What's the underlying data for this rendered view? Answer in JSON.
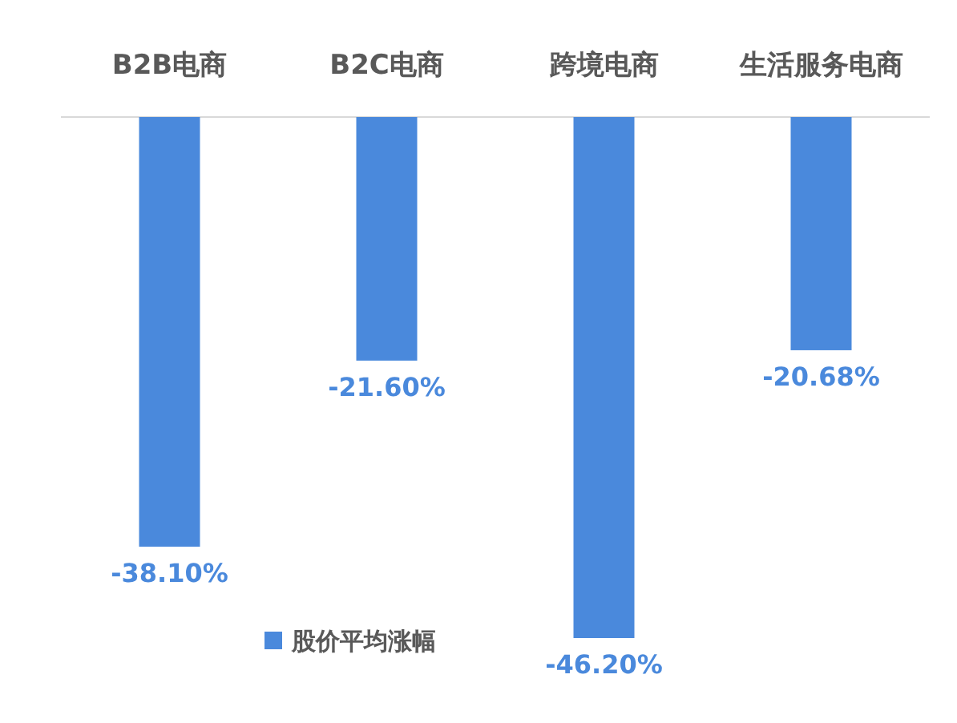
{
  "chart_data": {
    "type": "bar",
    "categories": [
      "B2B电商",
      "B2C电商",
      "跨境电商",
      "生活服务电商"
    ],
    "series": [
      {
        "name": "股价平均涨幅",
        "color": "#4a89dc",
        "values": [
          -38.1,
          -21.6,
          -46.2,
          -20.68
        ],
        "value_labels": [
          "-38.10%",
          "-21.60%",
          "-46.20%",
          "-20.68%"
        ]
      }
    ],
    "legend": "bottom"
  }
}
